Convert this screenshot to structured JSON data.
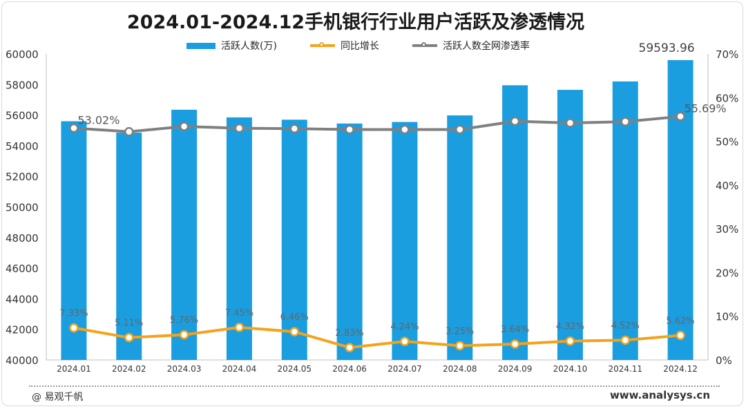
{
  "footer": {
    "brand": "@ 易观千帆",
    "website": "www.analysys.cn"
  },
  "chart_data": {
    "type": "bar",
    "title": "2024.01-2024.12手机银行行业用户活跃及渗透情况",
    "categories": [
      "2024.01",
      "2024.02",
      "2024.03",
      "2024.04",
      "2024.05",
      "2024.06",
      "2024.07",
      "2024.08",
      "2024.09",
      "2024.10",
      "2024.11",
      "2024.12"
    ],
    "legend_position": "top",
    "grid": false,
    "y_left": {
      "min": 40000,
      "max": 60000,
      "step": 2000
    },
    "y_right": {
      "min": 0,
      "max": 70,
      "step": 10,
      "suffix": "%"
    },
    "series": [
      {
        "name": "活跃人数(万)",
        "kind": "bar",
        "axis": "left",
        "color": "#1a9ee0",
        "values": [
          55600,
          54850,
          56350,
          55850,
          55700,
          55450,
          55550,
          55980,
          57950,
          57650,
          58200,
          59593.96
        ],
        "labels": [
          "",
          "",
          "",
          "",
          "",
          "",
          "",
          "",
          "",
          "",
          "",
          "59593.96"
        ]
      },
      {
        "name": "同比增长",
        "kind": "line",
        "axis": "right",
        "color": "#f5a21b",
        "values": [
          7.33,
          5.11,
          5.76,
          7.45,
          6.46,
          2.83,
          4.24,
          3.25,
          3.64,
          4.32,
          4.52,
          5.62
        ],
        "labels": [
          "7.33%",
          "5.11%",
          "5.76%",
          "7.45%",
          "6.46%",
          "2.83%",
          "4.24%",
          "3.25%",
          "3.64%",
          "4.32%",
          "4.52%",
          "5.62%"
        ]
      },
      {
        "name": "活跃人数全网渗透率",
        "kind": "line",
        "axis": "right",
        "color": "#808080",
        "values": [
          53.02,
          52.2,
          53.4,
          53.0,
          52.9,
          52.7,
          52.7,
          52.7,
          54.6,
          54.2,
          54.5,
          55.69
        ],
        "labels": [
          "53.02%",
          "",
          "",
          "",
          "",
          "",
          "",
          "",
          "",
          "",
          "",
          "55.69%"
        ]
      }
    ]
  }
}
